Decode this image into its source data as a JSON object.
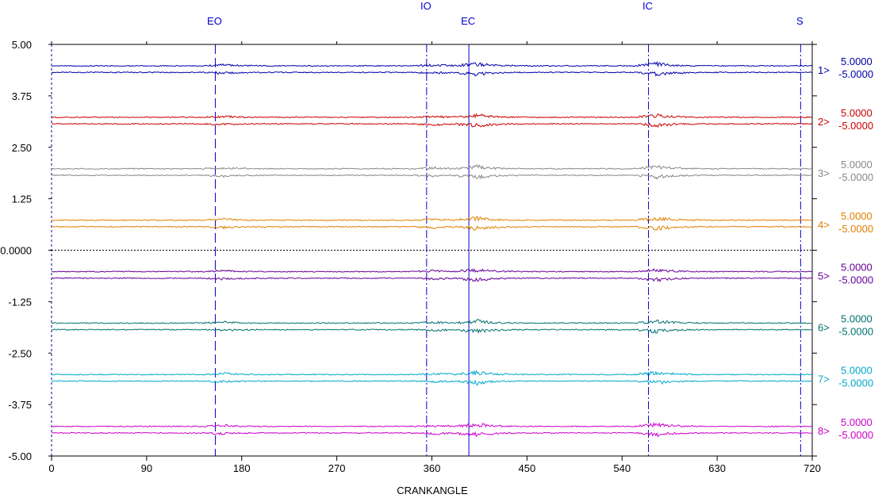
{
  "chart_data": {
    "type": "line",
    "xlabel": "CRANKANGLE",
    "xlim": [
      0,
      720
    ],
    "ylim": [
      -5,
      5
    ],
    "xticks": [
      "0",
      "90",
      "180",
      "270",
      "360",
      "450",
      "540",
      "630",
      "720"
    ],
    "yticks": [
      "5.00",
      "3.75",
      "2.50",
      "1.25",
      "0.0000",
      "-1.25",
      "-2.50",
      "-3.75",
      "-5.00"
    ],
    "events": [
      {
        "label": "EO",
        "angle": 155,
        "style": "dashed"
      },
      {
        "label": "IO",
        "angle": 355,
        "style": "dashdot"
      },
      {
        "label": "EC",
        "angle": 395,
        "style": "solid"
      },
      {
        "label": "IC",
        "angle": 565,
        "style": "dashdot"
      },
      {
        "label": "S",
        "angle": 709,
        "style": "dashdot"
      }
    ],
    "series": [
      {
        "name": "1>",
        "max": "5.0000",
        "min": "-5.0000",
        "color": "#0000aa",
        "baseline": 4.4
      },
      {
        "name": "2>",
        "max": "5.0000",
        "min": "-5.0000",
        "color": "#cc0000",
        "baseline": 3.15
      },
      {
        "name": "3>",
        "max": "5.0000",
        "min": "-5.0000",
        "color": "#888888",
        "baseline": 1.9
      },
      {
        "name": "4>",
        "max": "5.0000",
        "min": "-5.0000",
        "color": "#e08000",
        "baseline": 0.65
      },
      {
        "name": "5>",
        "max": "5.0000",
        "min": "-5.0000",
        "color": "#660099",
        "baseline": -0.6
      },
      {
        "name": "6>",
        "max": "5.0000",
        "min": "-5.0000",
        "color": "#007070",
        "baseline": -1.85
      },
      {
        "name": "7>",
        "max": "5.0000",
        "min": "-5.0000",
        "color": "#00a8cc",
        "baseline": -3.1
      },
      {
        "name": "8>",
        "max": "5.0000",
        "min": "-5.0000",
        "color": "#cc00cc",
        "baseline": -4.36
      }
    ]
  }
}
